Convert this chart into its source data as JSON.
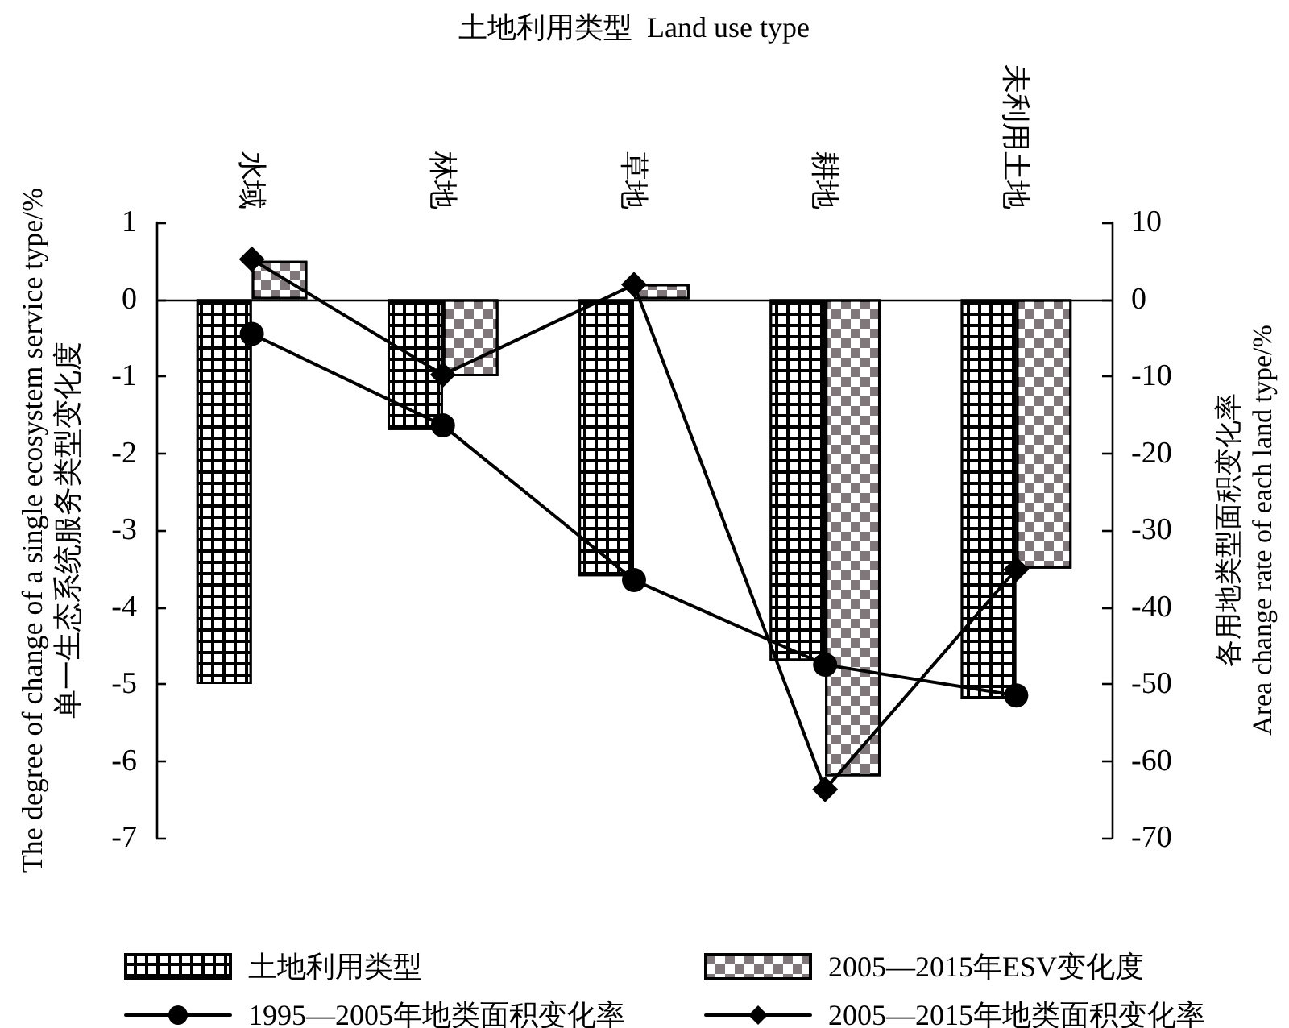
{
  "chart_data": {
    "type": "bar",
    "xlabel": "土地利用类型  Land use type",
    "ylabel": "The degree of change of a single ecosystem service type/%\n单一生态系统服务类型变化度",
    "y2label": "各用地类型面积变化率\nArea change rate of each land type/%",
    "categories": [
      "水域",
      "林地",
      "草地",
      "耕地",
      "未利用土地"
    ],
    "series": [
      {
        "name": "土地利用类型",
        "color": "#000000",
        "values": [
          -5,
          -1.7,
          -3.6,
          -4.7,
          -5.2
        ]
      },
      {
        "name": "2005—2015年ESV变化度",
        "color": "#7f7779",
        "values": [
          0.5,
          -1.0,
          0.2,
          -6.2,
          -3.5
        ]
      },
      {
        "name": "1995—2005年地类面积变化率",
        "type": "line",
        "axis": "y2",
        "marker": "circle",
        "color": "#000000",
        "values": [
          -4.5,
          -16.4,
          -36.5,
          -47.5,
          -51.5
        ]
      },
      {
        "name": "2005—2015年地类面积变化率",
        "type": "line",
        "axis": "y2",
        "marker": "diamond",
        "color": "#000000",
        "values": [
          5.2,
          -9.8,
          1.9,
          -63.7,
          -35.1
        ]
      }
    ],
    "ylim": [
      -7,
      1
    ],
    "yticks": [
      -7,
      -6,
      -5,
      -4,
      -3,
      -2,
      -1,
      0,
      1
    ],
    "y2lim": [
      -70,
      10
    ],
    "y2ticks": [
      -70,
      -60,
      -50,
      -40,
      -30,
      -20,
      -10,
      0,
      10
    ],
    "ref_lines": [
      {
        "axis": "y",
        "value": 0,
        "color": "#000000",
        "line_style": "solid"
      }
    ],
    "grid": false,
    "legend": "bottom"
  }
}
